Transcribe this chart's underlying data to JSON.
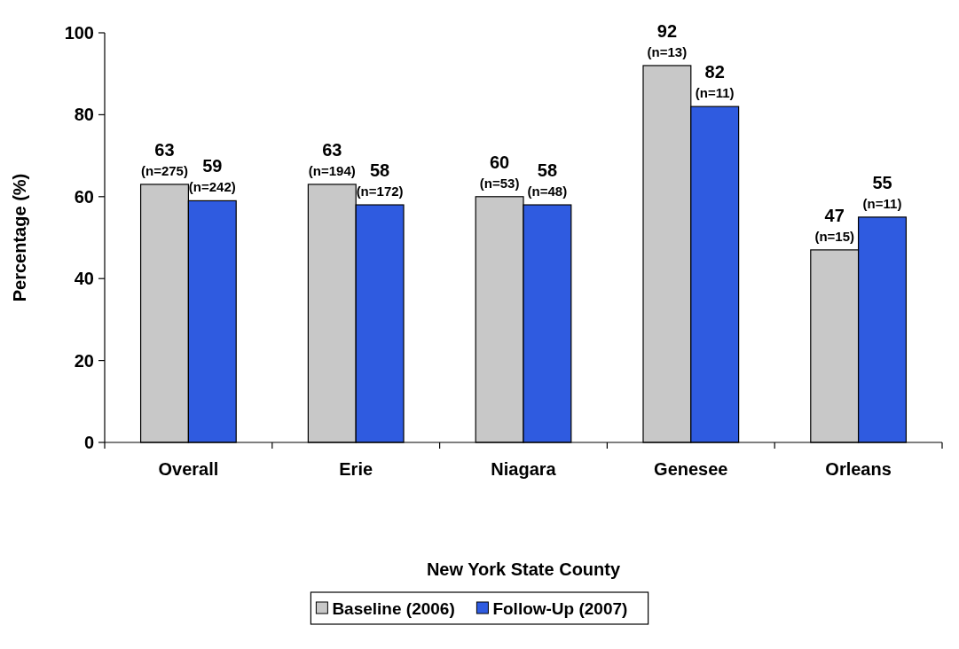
{
  "chart_data": {
    "type": "bar",
    "xlabel": "New York State County",
    "ylabel": "Percentage (%)",
    "categories": [
      "Overall",
      "Erie",
      "Niagara",
      "Genesee",
      "Orleans"
    ],
    "series": [
      {
        "name": "Baseline (2006)",
        "color": "#c8c8c8",
        "values": [
          63,
          63,
          60,
          92,
          47
        ],
        "value_labels": [
          "63\n(n=275)",
          "63\n(n=194)",
          "60\n(n=53)",
          "92\n(n=13)",
          "47\n(n=15)"
        ]
      },
      {
        "name": "Follow-Up (2007)",
        "color": "#2f5be0",
        "values": [
          59,
          58,
          58,
          82,
          55
        ],
        "value_labels": [
          "59\n(n=242)",
          "58\n(n=172)",
          "58\n(n=48)",
          "82\n(n=11)",
          "55\n(n=11)"
        ]
      }
    ],
    "ylim": [
      0,
      100
    ],
    "yticks": [
      0,
      20,
      40,
      60,
      80,
      100
    ],
    "grid": false,
    "legend": "bottom"
  }
}
